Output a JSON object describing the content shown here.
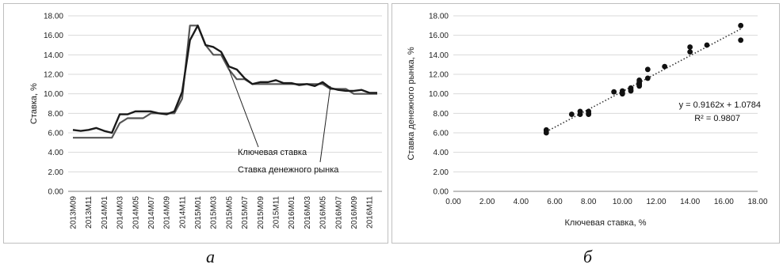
{
  "chart_data": [
    {
      "type": "line",
      "panel_caption": "а",
      "ylabel": "Ставка, %",
      "xlabel": "",
      "ylim": [
        0,
        18
      ],
      "yticks": [
        "0.00",
        "2.00",
        "4.00",
        "6.00",
        "8.00",
        "10.00",
        "12.00",
        "14.00",
        "16.00",
        "18.00"
      ],
      "x_tick_labels": [
        "2013M09",
        "2013M11",
        "2014M01",
        "2014M03",
        "2014M05",
        "2014M07",
        "2014M09",
        "2014M11",
        "2015M01",
        "2015M03",
        "2015M05",
        "2015M07",
        "2015M09",
        "2015M11",
        "2016M01",
        "2016M03",
        "2016M05",
        "2016M07",
        "2016M09",
        "2016M11"
      ],
      "x": [
        "2013M09",
        "2013M10",
        "2013M11",
        "2013M12",
        "2014M01",
        "2014M02",
        "2014M03",
        "2014M04",
        "2014M05",
        "2014M06",
        "2014M07",
        "2014M08",
        "2014M09",
        "2014M10",
        "2014M11",
        "2014M12",
        "2015M01",
        "2015M02",
        "2015M03",
        "2015M04",
        "2015M05",
        "2015M06",
        "2015M07",
        "2015M08",
        "2015M09",
        "2015M10",
        "2015M11",
        "2015M12",
        "2016M01",
        "2016M02",
        "2016M03",
        "2016M04",
        "2016M05",
        "2016M06",
        "2016M07",
        "2016M08",
        "2016M09",
        "2016M10",
        "2016M11",
        "2016M12"
      ],
      "series": [
        {
          "name": "Ключевая ставка",
          "color": "#555555",
          "values": [
            5.5,
            5.5,
            5.5,
            5.5,
            5.5,
            5.5,
            7.0,
            7.5,
            7.5,
            7.5,
            8.0,
            8.0,
            8.0,
            8.0,
            9.5,
            17.0,
            17.0,
            15.0,
            14.0,
            14.0,
            12.5,
            11.5,
            11.5,
            11.0,
            11.0,
            11.0,
            11.0,
            11.0,
            11.0,
            11.0,
            11.0,
            11.0,
            11.0,
            10.5,
            10.5,
            10.5,
            10.0,
            10.0,
            10.0,
            10.0
          ]
        },
        {
          "name": "Ставка денежного рынка",
          "color": "#1a1a1a",
          "values": [
            6.3,
            6.2,
            6.3,
            6.5,
            6.2,
            6.0,
            7.9,
            7.9,
            8.2,
            8.2,
            8.2,
            8.0,
            7.9,
            8.2,
            10.2,
            15.5,
            17.0,
            15.0,
            14.8,
            14.3,
            12.8,
            12.5,
            11.6,
            11.0,
            11.2,
            11.2,
            11.4,
            11.1,
            11.1,
            10.9,
            11.0,
            10.8,
            11.2,
            10.6,
            10.4,
            10.3,
            10.3,
            10.4,
            10.1,
            10.1
          ]
        }
      ],
      "annotations": [
        "Ключевая ставка",
        "Ставка денежного рынка"
      ]
    },
    {
      "type": "scatter",
      "panel_caption": "б",
      "xlabel": "Ключевая ставка, %",
      "ylabel": "Ставка денежного рынка, %",
      "xlim": [
        0,
        18
      ],
      "ylim": [
        0,
        18
      ],
      "xticks": [
        "0.00",
        "2.00",
        "4.00",
        "6.00",
        "8.00",
        "10.00",
        "12.00",
        "14.00",
        "16.00",
        "18.00"
      ],
      "yticks": [
        "0.00",
        "2.00",
        "4.00",
        "6.00",
        "8.00",
        "10.00",
        "12.00",
        "14.00",
        "16.00",
        "18.00"
      ],
      "points": [
        [
          5.5,
          6.3
        ],
        [
          5.5,
          6.2
        ],
        [
          5.5,
          6.0
        ],
        [
          7.0,
          7.9
        ],
        [
          7.5,
          7.9
        ],
        [
          7.5,
          8.2
        ],
        [
          8.0,
          8.2
        ],
        [
          8.0,
          8.0
        ],
        [
          8.0,
          7.9
        ],
        [
          9.5,
          10.2
        ],
        [
          10.0,
          10.3
        ],
        [
          10.0,
          10.1
        ],
        [
          10.0,
          10.0
        ],
        [
          10.5,
          10.6
        ],
        [
          10.5,
          10.4
        ],
        [
          10.5,
          10.3
        ],
        [
          11.0,
          11.0
        ],
        [
          11.0,
          11.2
        ],
        [
          11.0,
          11.4
        ],
        [
          11.0,
          10.8
        ],
        [
          11.0,
          10.9
        ],
        [
          11.0,
          11.1
        ],
        [
          11.5,
          11.6
        ],
        [
          11.5,
          12.5
        ],
        [
          12.5,
          12.8
        ],
        [
          14.0,
          14.8
        ],
        [
          14.0,
          14.3
        ],
        [
          15.0,
          15.0
        ],
        [
          17.0,
          17.0
        ],
        [
          17.0,
          15.5
        ]
      ],
      "trendline": {
        "slope": 0.9162,
        "intercept": 1.0784,
        "x_range": [
          5.5,
          17.0
        ]
      },
      "equation": "y = 0.9162x + 1.0784",
      "r_squared": "R² = 0.9807"
    }
  ]
}
